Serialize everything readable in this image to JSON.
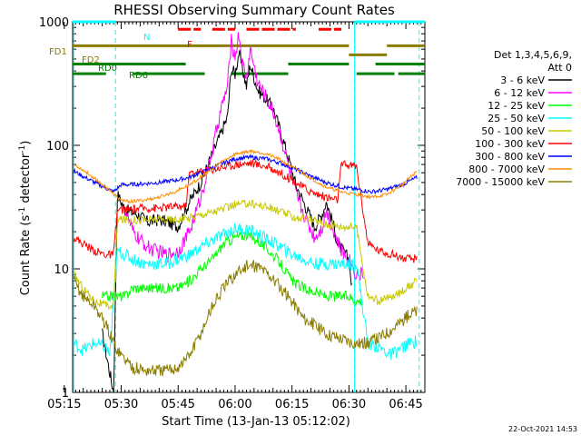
{
  "chart_data": {
    "type": "line",
    "title": "RHESSI Observing Summary Count Rates",
    "xlabel": "Start Time (13-Jan-13 05:12:02)",
    "ylabel": "Count Rate (s",
    "ylabel_sup": "-1",
    "ylabel_tail": " detector",
    "ylabel_close": ")",
    "y_scale": "log",
    "ylim": [
      1,
      1000
    ],
    "y_ticks": [
      1,
      10,
      100,
      1000
    ],
    "y_tick_labels": [
      "1",
      "10",
      "100",
      "1000"
    ],
    "xlim_minutes": [
      5.2,
      98.0
    ],
    "x_ticks_minutes": [
      3,
      18,
      33,
      48,
      63,
      78,
      93
    ],
    "x_tick_labels": [
      "05:15",
      "05:30",
      "05:45",
      "06:00",
      "06:15",
      "06:30",
      "06:45"
    ],
    "legend": {
      "header_line1": "Det 1,3,4,5,6,9,",
      "header_line2": "Att 0",
      "placement": "right",
      "entries": [
        {
          "label": "3 - 6 keV",
          "color": "#000000"
        },
        {
          "label": "6 - 12 keV",
          "color": "#ff00ff"
        },
        {
          "label": "12 - 25 keV",
          "color": "#00ff00"
        },
        {
          "label": "25 - 50 keV",
          "color": "#00ffff"
        },
        {
          "label": "50 - 100 keV",
          "color": "#c8c800"
        },
        {
          "label": "100 - 300 keV",
          "color": "#ff0000"
        },
        {
          "label": "300 - 800 keV",
          "color": "#0000ff"
        },
        {
          "label": "800 - 7000 keV",
          "color": "#ff8c00"
        },
        {
          "label": "7000 - 15000 keV",
          "color": "#8b7d00"
        }
      ]
    },
    "flags": [
      {
        "label": "N",
        "color": "#00ffff",
        "level": 1000,
        "segments": [
          [
            5.2,
            16.5
          ],
          [
            79.5,
            98.0
          ]
        ]
      },
      {
        "label": "F",
        "color": "#ff0000",
        "level": 870,
        "segments": [
          [
            33,
            39
          ],
          [
            42,
            48
          ],
          [
            51,
            64
          ],
          [
            70,
            76
          ]
        ]
      },
      {
        "label": "FD1",
        "color": "#8b7d00",
        "level": 640,
        "segments": [
          [
            5.2,
            78
          ],
          [
            88,
            98
          ]
        ]
      },
      {
        "label": "FD2",
        "color": "#8b7d00",
        "level": 540,
        "segments": [
          [
            78,
            88
          ]
        ]
      },
      {
        "label": "RD0",
        "color": "#008000",
        "level": 455,
        "segments": [
          [
            5.2,
            35
          ],
          [
            62,
            78
          ],
          [
            85,
            98
          ]
        ]
      },
      {
        "label": "RD6",
        "color": "#008000",
        "level": 380,
        "segments": [
          [
            5.2,
            14
          ],
          [
            21,
            40
          ],
          [
            47,
            62
          ],
          [
            80,
            90
          ],
          [
            91,
            98
          ]
        ]
      }
    ],
    "eclipse_lines_minutes": [
      16.5,
      79.5,
      96.5
    ],
    "day_night_lines_minutes": [
      5.5,
      79.5
    ],
    "series": [
      {
        "name": "3 - 6 keV",
        "color": "#000000",
        "x": [
          13,
          16,
          17,
          18,
          19,
          22,
          25,
          28,
          30,
          33,
          36,
          39,
          42,
          43,
          46,
          47,
          48,
          49,
          51,
          52,
          54,
          56,
          58,
          60,
          62,
          64,
          67,
          69,
          71,
          72,
          73,
          74,
          75,
          78,
          79
        ],
        "y": [
          3.0,
          1.0,
          40,
          35,
          30,
          28,
          24,
          25,
          24,
          22,
          35,
          50,
          85,
          100,
          170,
          420,
          380,
          560,
          300,
          450,
          280,
          240,
          200,
          130,
          80,
          48,
          30,
          22,
          28,
          35,
          28,
          22,
          16,
          12,
          6
        ]
      },
      {
        "name": "6 - 12 keV",
        "color": "#ff00ff",
        "x": [
          19,
          21,
          23,
          25,
          27,
          30,
          33,
          36,
          39,
          42,
          44,
          46,
          47,
          48,
          49,
          50,
          51,
          52,
          54,
          56,
          58,
          60,
          62,
          64,
          67,
          69,
          71,
          72,
          74,
          76,
          78,
          80,
          82
        ],
        "y": [
          30,
          20,
          17,
          15,
          14,
          13,
          14,
          20,
          38,
          90,
          180,
          300,
          700,
          520,
          800,
          450,
          350,
          600,
          320,
          250,
          190,
          120,
          70,
          40,
          24,
          18,
          22,
          30,
          20,
          14,
          12,
          9,
          9
        ]
      },
      {
        "name": "12 - 25 keV",
        "color": "#00ff00",
        "x": [
          13,
          19,
          21,
          25,
          29,
          33,
          36,
          39,
          42,
          45,
          48,
          51,
          54,
          57,
          60,
          63,
          66,
          69,
          72,
          75,
          78,
          80,
          82
        ],
        "y": [
          6,
          6,
          7,
          7,
          7,
          7,
          8,
          10,
          12,
          16,
          18,
          19,
          17,
          14,
          11,
          8,
          7,
          6.5,
          6,
          6,
          6,
          5.5,
          5.5
        ]
      },
      {
        "name": "25 - 50 keV",
        "color": "#00ffff",
        "x": [
          5.5,
          8,
          11,
          14,
          15,
          17,
          19,
          21,
          24,
          27,
          30,
          33,
          36,
          39,
          42,
          45,
          48,
          51,
          54,
          57,
          60,
          63,
          66,
          69,
          72,
          75,
          78,
          80,
          83,
          86,
          89,
          92,
          94,
          96
        ],
        "y": [
          2.5,
          2.2,
          2.5,
          2.3,
          2.0,
          14,
          13,
          12,
          11,
          11,
          11,
          12,
          13,
          15,
          17,
          19,
          21,
          21,
          19,
          17,
          15,
          13,
          12,
          11,
          11,
          11,
          11,
          11,
          2.5,
          2.3,
          2.0,
          2.3,
          2.5,
          2.6
        ]
      },
      {
        "name": "50 - 100 keV",
        "color": "#c8c800",
        "x": [
          5.5,
          8,
          11,
          14,
          16,
          17,
          20,
          24,
          28,
          32,
          36,
          40,
          44,
          48,
          52,
          56,
          60,
          64,
          68,
          72,
          76,
          80,
          83,
          86,
          90,
          93,
          96
        ],
        "y": [
          9,
          7,
          5.5,
          5,
          5,
          25,
          25,
          25,
          25,
          25,
          26,
          28,
          30,
          33,
          34,
          32,
          29,
          26,
          25,
          23,
          22,
          22,
          6,
          5.5,
          6,
          7,
          8
        ]
      },
      {
        "name": "100 - 300 keV",
        "color": "#ff0000",
        "x": [
          5.5,
          8,
          11,
          14,
          16,
          17,
          20,
          24,
          28,
          32,
          35,
          36,
          40,
          44,
          48,
          52,
          56,
          60,
          64,
          68,
          72,
          75,
          76,
          80,
          83,
          86,
          90,
          93,
          96
        ],
        "y": [
          18,
          16,
          14,
          13,
          13,
          30,
          30,
          31,
          31,
          32,
          32,
          60,
          62,
          66,
          70,
          72,
          68,
          60,
          50,
          42,
          38,
          36,
          70,
          68,
          16,
          14,
          13,
          12,
          12
        ]
      },
      {
        "name": "300 - 800 keV",
        "color": "#0000ff",
        "x": [
          5.5,
          8,
          11,
          14,
          16,
          18,
          20,
          24,
          28,
          32,
          36,
          40,
          44,
          48,
          52,
          56,
          60,
          64,
          68,
          72,
          76,
          80,
          84,
          88,
          92,
          96
        ],
        "y": [
          62,
          56,
          50,
          45,
          42,
          48,
          48,
          49,
          50,
          52,
          55,
          62,
          70,
          78,
          80,
          78,
          72,
          64,
          56,
          50,
          46,
          44,
          42,
          44,
          48,
          55
        ]
      },
      {
        "name": "800 - 7000 keV",
        "color": "#ff8c00",
        "x": [
          5.5,
          8,
          11,
          14,
          16,
          18,
          20,
          24,
          28,
          32,
          36,
          40,
          44,
          48,
          52,
          56,
          60,
          64,
          68,
          72,
          76,
          80,
          84,
          88,
          92,
          96
        ],
        "y": [
          70,
          63,
          54,
          46,
          40,
          36,
          35,
          36,
          38,
          42,
          48,
          58,
          72,
          85,
          90,
          86,
          76,
          64,
          54,
          46,
          42,
          40,
          38,
          40,
          48,
          62
        ]
      },
      {
        "name": "7000 - 15000 keV",
        "color": "#8b7d00",
        "x": [
          5.5,
          8,
          11,
          14,
          16,
          18,
          21,
          24,
          27,
          30,
          33,
          36,
          39,
          42,
          45,
          48,
          51,
          54,
          57,
          60,
          63,
          66,
          69,
          72,
          75,
          78,
          80,
          83,
          86,
          89,
          92,
          95,
          96
        ],
        "y": [
          8,
          6,
          5,
          3.5,
          2.5,
          2.0,
          1.6,
          1.5,
          1.5,
          1.5,
          1.6,
          2.0,
          3,
          5,
          7,
          9,
          10.5,
          10.5,
          9,
          7,
          5.5,
          4,
          3.5,
          3,
          2.8,
          2.6,
          2.5,
          2.5,
          2.8,
          3.2,
          3.8,
          4.5,
          4.5
        ]
      }
    ]
  },
  "footer_date": "22-Oct-2021 14:53"
}
